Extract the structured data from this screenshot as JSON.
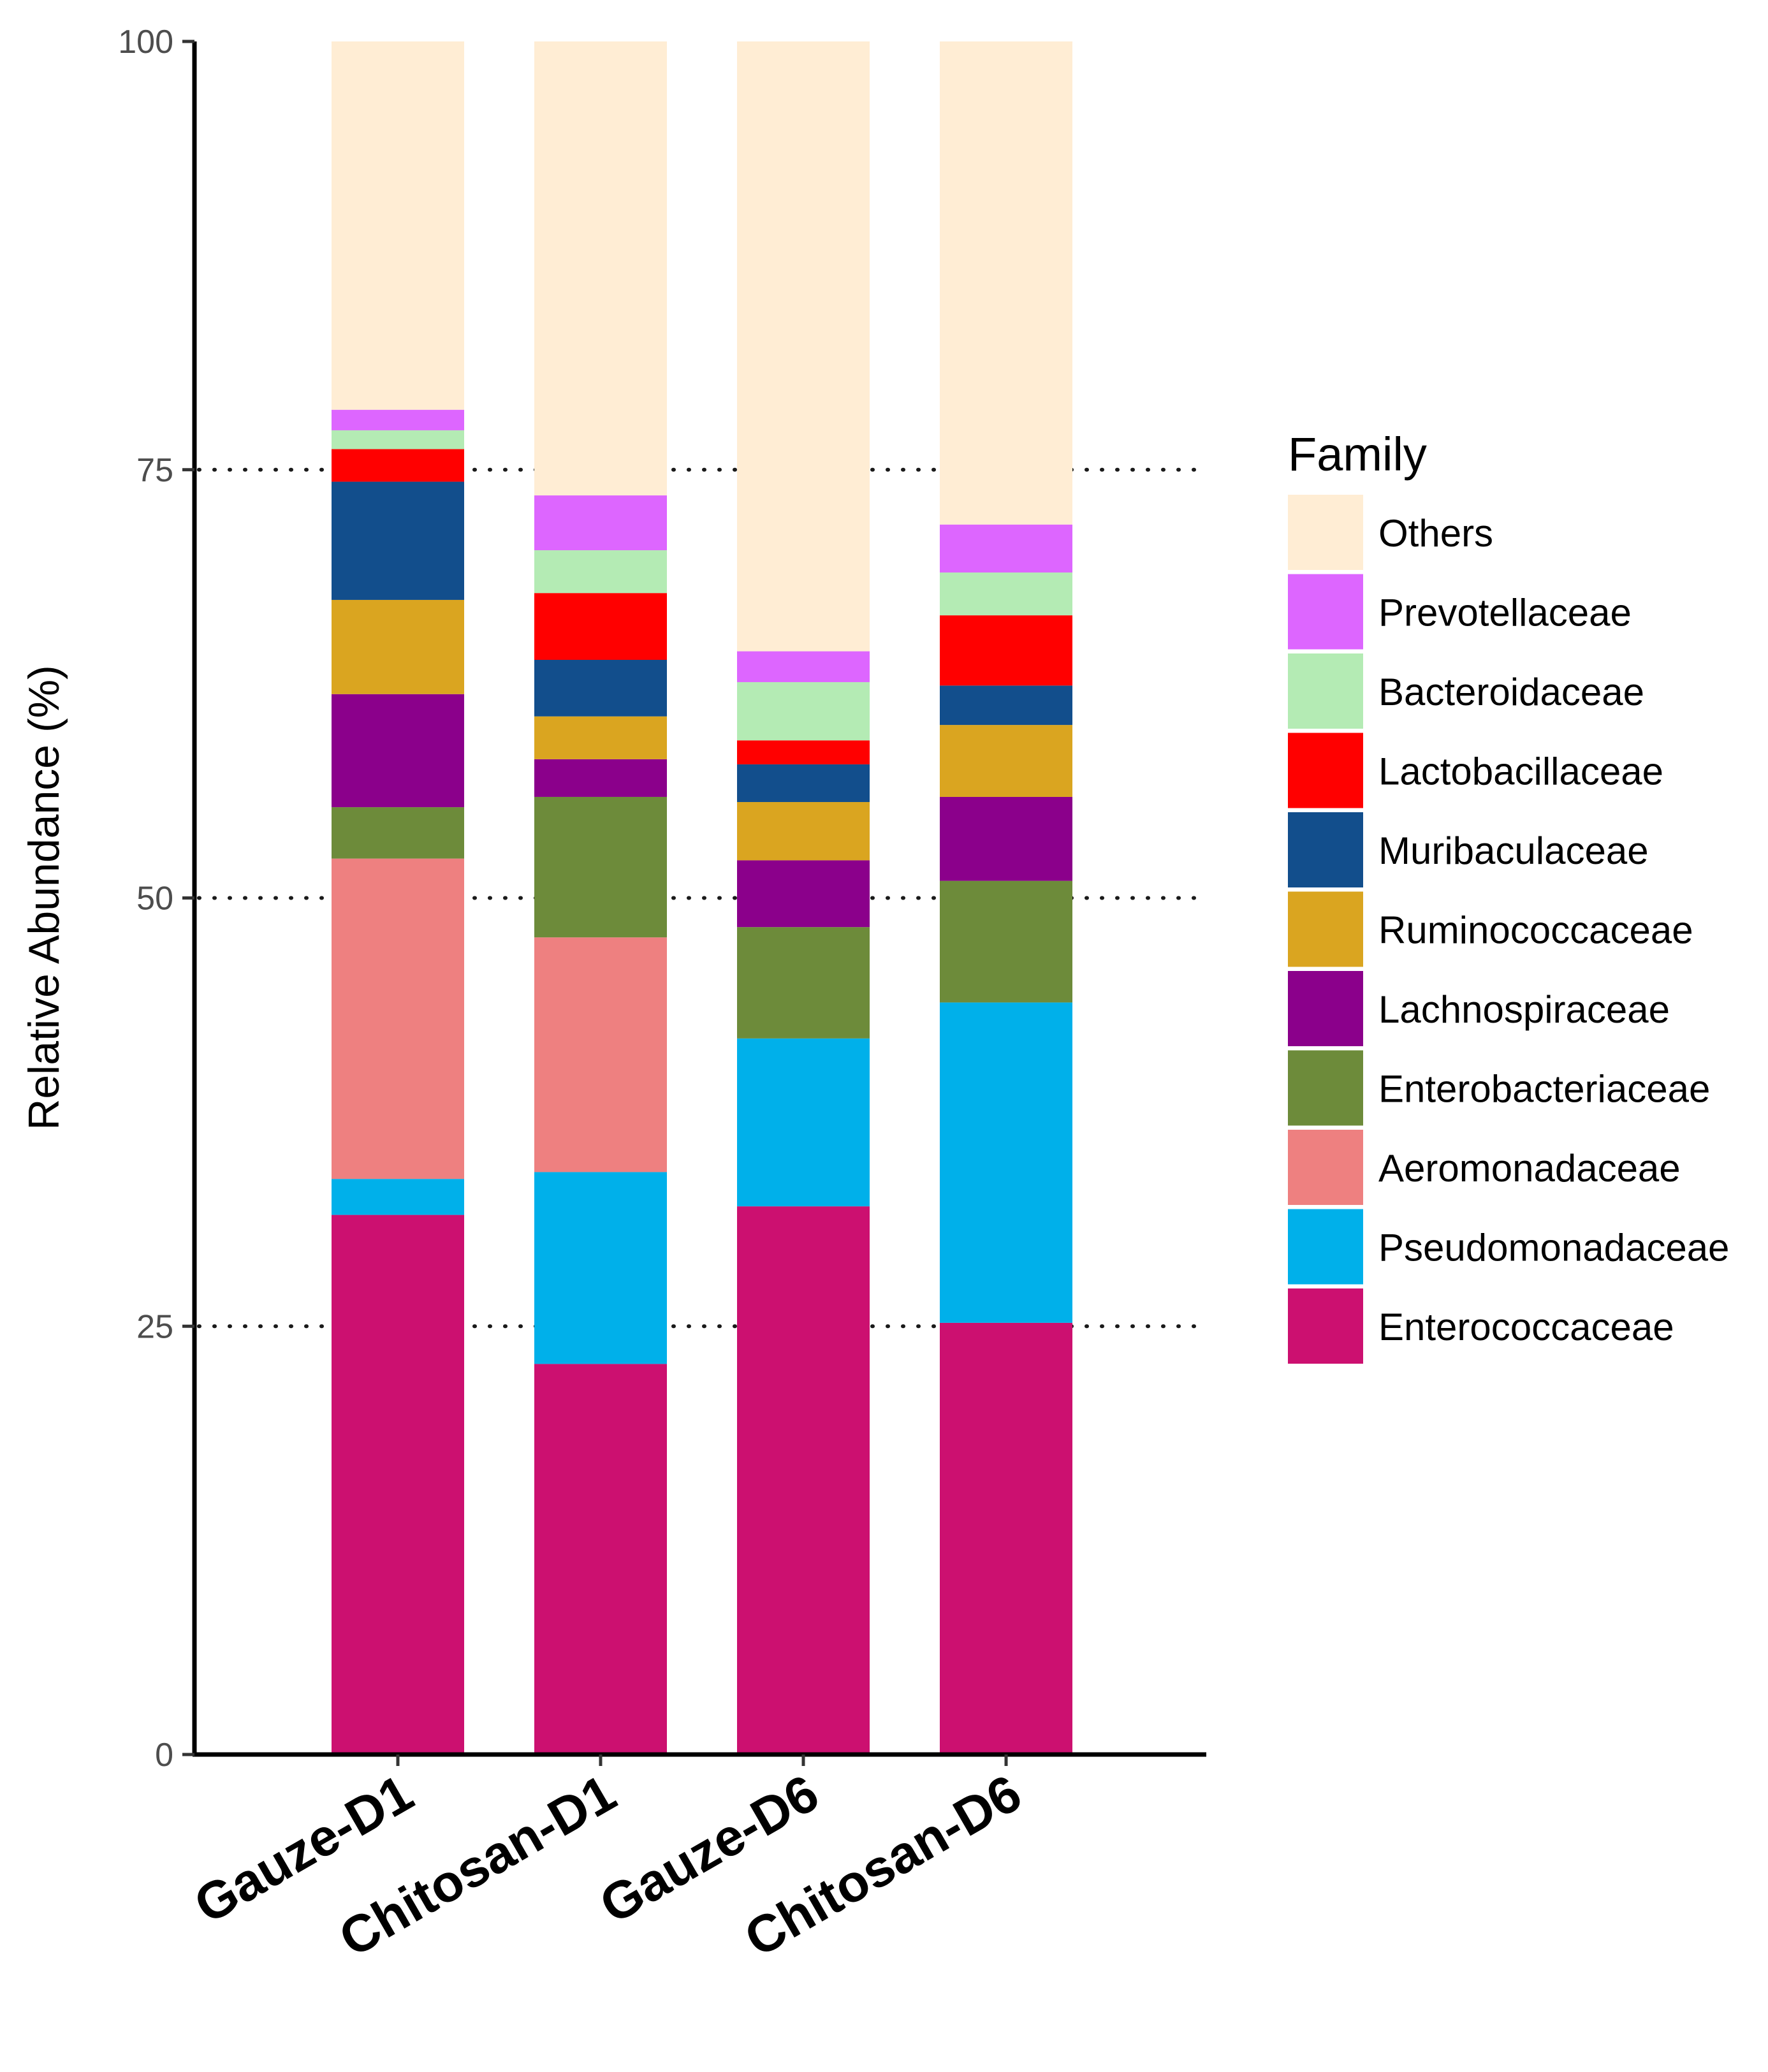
{
  "chart_data": {
    "type": "bar",
    "stacked": true,
    "title": "",
    "xlabel": "",
    "ylabel": "Relative Abundance (%)",
    "ylim": [
      0,
      100
    ],
    "yticks": [
      "0",
      "25",
      "50",
      "75",
      "100"
    ],
    "grid": "dotted horizontal at 25, 50, 75",
    "legend_position": "right",
    "legend_title": "Family",
    "categories": [
      "Gauze-D1",
      "Chitosan-D1",
      "Gauze-D6",
      "Chitosan-D6"
    ],
    "series": [
      {
        "name": "Enterococcaceae",
        "color": "#CC1070",
        "values": [
          31.5,
          22.8,
          32.0,
          25.2
        ]
      },
      {
        "name": "Pseudomonadaceae",
        "color": "#00B0EA",
        "values": [
          2.1,
          11.2,
          9.8,
          18.7
        ]
      },
      {
        "name": "Aeromonadaceae",
        "color": "#EE8080",
        "values": [
          18.7,
          13.7,
          0.0,
          0.0
        ]
      },
      {
        "name": "Enterobacteriaceae",
        "color": "#6D8B3A",
        "values": [
          3.0,
          8.2,
          6.5,
          7.1
        ]
      },
      {
        "name": "Lachnospiraceae",
        "color": "#8B008B",
        "values": [
          6.6,
          2.2,
          3.9,
          4.9
        ]
      },
      {
        "name": "Ruminococcaceae",
        "color": "#DAA520",
        "values": [
          5.5,
          2.5,
          3.4,
          4.2
        ]
      },
      {
        "name": "Muribaculaceae",
        "color": "#124E8C",
        "values": [
          6.9,
          3.3,
          2.2,
          2.3
        ]
      },
      {
        "name": "Lactobacillaceae",
        "color": "#FF0000",
        "values": [
          1.9,
          3.9,
          1.4,
          4.1
        ]
      },
      {
        "name": "Bacteroidaceae",
        "color": "#B4EBB4",
        "values": [
          1.1,
          2.5,
          3.4,
          2.5
        ]
      },
      {
        "name": "Prevotellaceae",
        "color": "#DD66FF",
        "values": [
          1.2,
          3.2,
          1.8,
          2.8
        ]
      },
      {
        "name": "Others",
        "color": "#FFEDD4",
        "values": [
          21.5,
          26.5,
          35.6,
          28.2
        ]
      }
    ]
  }
}
